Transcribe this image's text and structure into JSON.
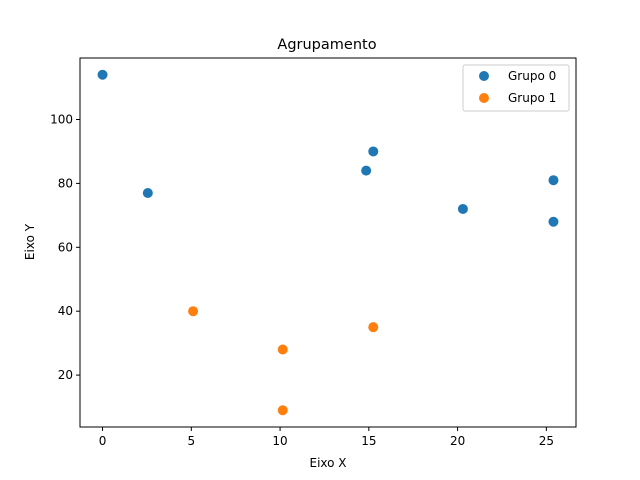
{
  "chart_data": {
    "type": "scatter",
    "title": "Agrupamento",
    "xlabel": "Eixo X",
    "ylabel": "Eixo Y",
    "xlim": [
      -1.27,
      26.67
    ],
    "ylim": [
      3.75,
      119.25
    ],
    "xticks": [
      0,
      5,
      10,
      15,
      20,
      25
    ],
    "yticks": [
      20,
      40,
      60,
      80,
      100
    ],
    "grid": false,
    "legend_position": "top-right",
    "series": [
      {
        "name": "Grupo 0",
        "color": "#1f77b4",
        "points": [
          {
            "x": 0.0,
            "y": 114
          },
          {
            "x": 2.55,
            "y": 77
          },
          {
            "x": 14.85,
            "y": 84
          },
          {
            "x": 15.25,
            "y": 90
          },
          {
            "x": 20.3,
            "y": 72
          },
          {
            "x": 25.4,
            "y": 81
          },
          {
            "x": 25.4,
            "y": 68
          }
        ]
      },
      {
        "name": "Grupo 1",
        "color": "#ff7f0e",
        "points": [
          {
            "x": 5.1,
            "y": 40
          },
          {
            "x": 10.15,
            "y": 28
          },
          {
            "x": 10.15,
            "y": 9
          },
          {
            "x": 15.25,
            "y": 35
          }
        ]
      }
    ]
  }
}
